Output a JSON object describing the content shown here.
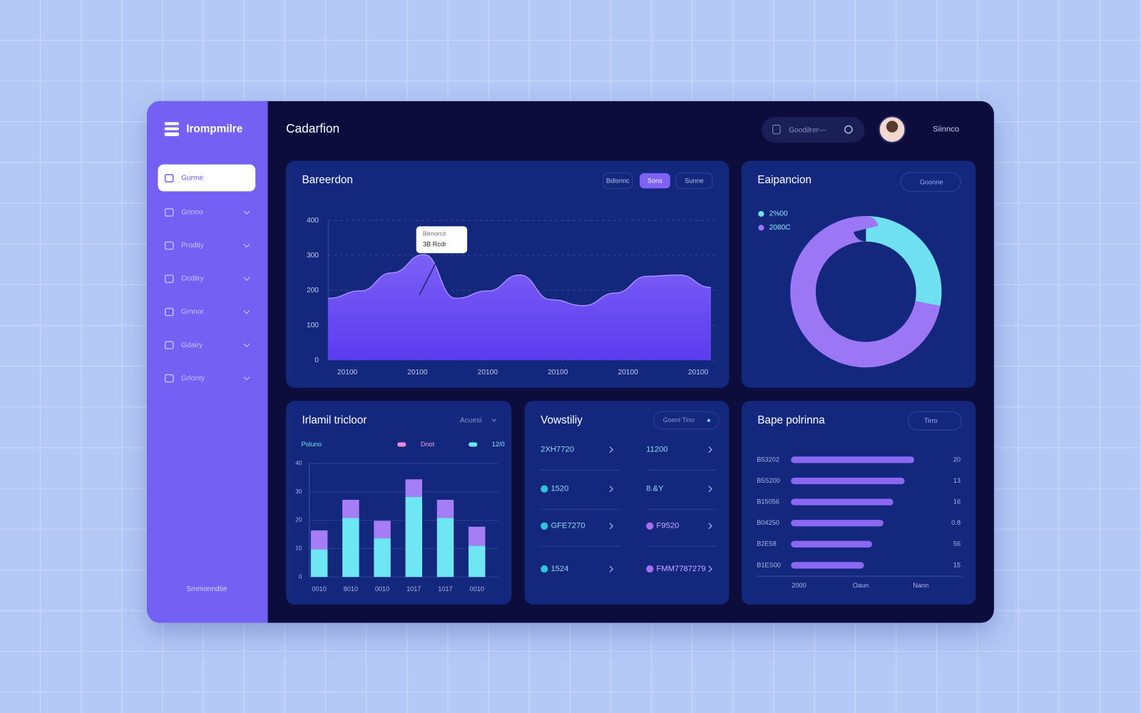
{
  "sidebar": {
    "brand": "Irompmilre",
    "nav": [
      "Gurme",
      "Grinoo",
      "Prodtiy",
      "Ocdilry",
      "Grnnor",
      "Gdairy",
      "Grlonty"
    ],
    "footer": "Smmonndtie"
  },
  "header": {
    "title": "Cadarfion",
    "search": "Goodilrer—",
    "user": "Siinnco"
  },
  "panels": [
    {
      "title": "Bareerdon",
      "tabs": [
        "Bdisnnc",
        "Sons",
        "Sunne"
      ],
      "active_tab": 1,
      "chart": {
        "type": "area",
        "x": [
          0,
          1,
          2,
          3,
          4,
          5,
          6,
          7,
          8,
          9,
          10,
          11,
          12
        ],
        "xlim": [
          0,
          12
        ],
        "xticks": [
          {
            "value": 0.6,
            "label": "20100"
          },
          {
            "value": 2.8,
            "label": "20100"
          },
          {
            "value": 5,
            "label": "20100"
          },
          {
            "value": 7.2,
            "label": "20100"
          },
          {
            "value": 9.4,
            "label": "20100"
          },
          {
            "value": 11.6,
            "label": "20100"
          }
        ],
        "ylim": [
          0,
          400
        ],
        "yticks": [
          0,
          100,
          200,
          300,
          400
        ],
        "grid": true,
        "series": [
          {
            "color": "#7b5cf6",
            "values": [
              177,
              198,
              250,
              302,
              177,
              198,
              244,
              173,
              156,
              192,
              240,
              244,
              208
            ]
          }
        ],
        "annotation": {
          "title": "Bilrnorcd",
          "text": "3B Rcdr",
          "x": 3
        }
      }
    },
    {
      "title": "Eaipancion",
      "button": "Goonne",
      "chart": {
        "type": "donut",
        "series": [
          {
            "name": "2%00",
            "color": "#6fe0f1",
            "value": 28
          },
          {
            "name": "2080C",
            "color": "#9b76f5",
            "value": 72
          }
        ]
      }
    },
    {
      "title": "Irlamil tricloor",
      "menu": "Acuesi",
      "chart": {
        "type": "stacked-bar",
        "legend_title": "Poluno",
        "categories": [
          "0010",
          "8010",
          "0010",
          "1017",
          "1017",
          "0010"
        ],
        "ylim": [
          0,
          40
        ],
        "yticks": [
          0,
          10,
          20,
          30,
          40
        ],
        "grid": true,
        "series": [
          {
            "name": "12/0",
            "color": "#6fe6f3",
            "values": [
              9.7,
              20.8,
              13.6,
              28.2,
              20.8,
              11
            ]
          },
          {
            "name": "Dnot",
            "color": "#a57ef6",
            "values": [
              6.7,
              6.4,
              6.2,
              6.2,
              6.4,
              6.7
            ]
          }
        ]
      }
    },
    {
      "title": "Vowstiliy",
      "menu": "Goenl Tino",
      "items": [
        "2XH7720",
        "11200",
        "1520",
        "8.&Y",
        "GFE7270",
        "F9520",
        "1524",
        "FMM7787279"
      ]
    },
    {
      "title": "Bape polrinna",
      "button": "Tirro",
      "chart": {
        "type": "hbar",
        "categories": [
          "B53202",
          "B5S200",
          "B15056",
          "B04250",
          "B2E58",
          "B1ES00"
        ],
        "values": [
          76,
          70,
          63,
          57,
          50,
          45
        ],
        "side_labels": [
          "20",
          "13",
          "16",
          "0.8",
          "56",
          "15"
        ],
        "color": "#8a68f4",
        "xlim": [
          0,
          100
        ],
        "xticks": [
          {
            "value": 5,
            "label": "2000"
          },
          {
            "value": 43,
            "label": "Oaun"
          },
          {
            "value": 80,
            "label": "Nann"
          }
        ]
      }
    }
  ]
}
